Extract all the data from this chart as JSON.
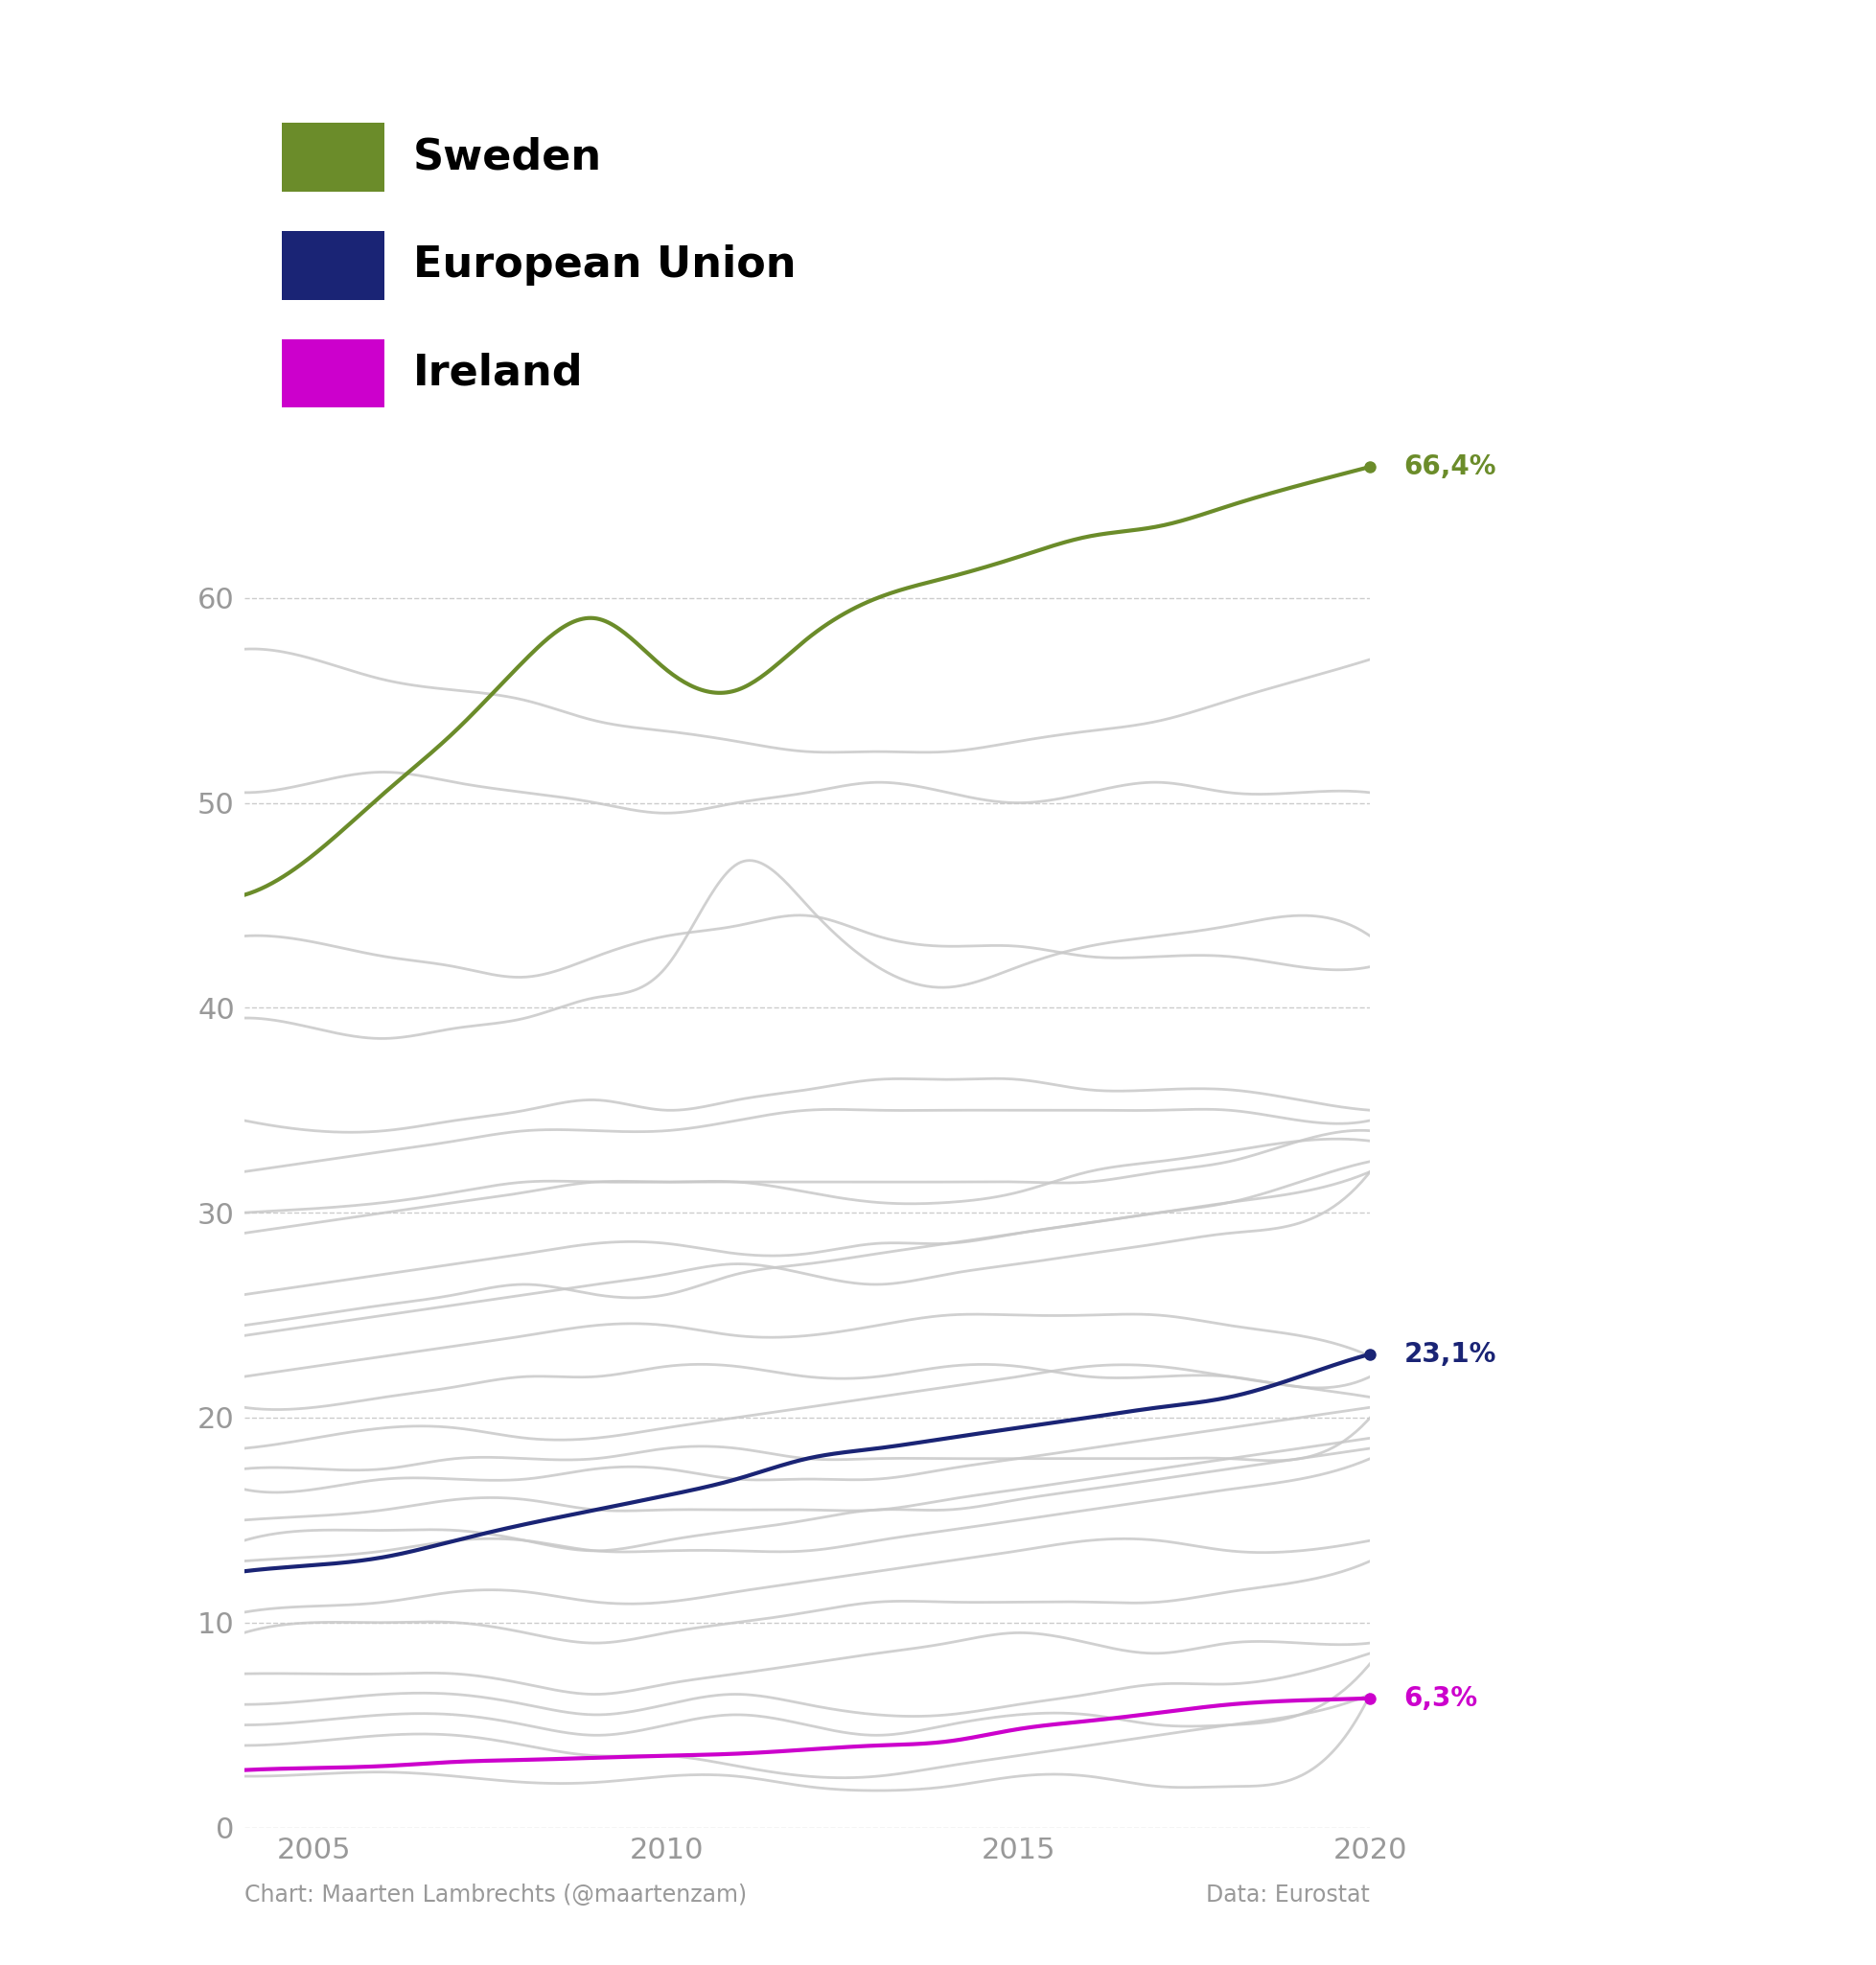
{
  "years": [
    2004,
    2005,
    2006,
    2007,
    2008,
    2009,
    2010,
    2011,
    2012,
    2013,
    2014,
    2015,
    2016,
    2017,
    2018,
    2019,
    2020
  ],
  "sweden": [
    45.5,
    47.5,
    50.5,
    53.5,
    57.0,
    59.0,
    56.5,
    55.5,
    58.0,
    60.0,
    61.0,
    62.0,
    63.0,
    63.5,
    64.5,
    65.5,
    66.4
  ],
  "eu": [
    12.5,
    12.8,
    13.2,
    14.0,
    14.8,
    15.5,
    16.2,
    17.0,
    18.0,
    18.5,
    19.0,
    19.5,
    20.0,
    20.5,
    21.0,
    22.0,
    23.1
  ],
  "ireland": [
    2.8,
    2.9,
    3.0,
    3.2,
    3.3,
    3.4,
    3.5,
    3.6,
    3.8,
    4.0,
    4.2,
    4.8,
    5.2,
    5.6,
    6.0,
    6.2,
    6.3
  ],
  "gray_lines": [
    [
      43.5,
      43.2,
      42.5,
      42.0,
      41.5,
      42.5,
      43.5,
      44.0,
      44.5,
      43.5,
      43.0,
      43.0,
      42.5,
      42.5,
      42.5,
      42.0,
      42.0
    ],
    [
      39.5,
      39.0,
      38.5,
      39.0,
      39.5,
      40.5,
      42.0,
      47.0,
      45.0,
      42.0,
      41.0,
      42.0,
      43.0,
      43.5,
      44.0,
      44.5,
      43.5
    ],
    [
      34.5,
      34.0,
      34.0,
      34.5,
      35.0,
      35.5,
      35.0,
      35.5,
      36.0,
      36.5,
      36.5,
      36.5,
      36.0,
      36.0,
      36.0,
      35.5,
      35.0
    ],
    [
      32.0,
      32.5,
      33.0,
      33.5,
      34.0,
      34.0,
      34.0,
      34.5,
      35.0,
      35.0,
      35.0,
      35.0,
      35.0,
      35.0,
      35.0,
      34.5,
      34.5
    ],
    [
      30.0,
      30.2,
      30.5,
      31.0,
      31.5,
      31.5,
      31.5,
      31.5,
      31.5,
      31.5,
      31.5,
      31.5,
      31.5,
      32.0,
      32.5,
      33.5,
      34.0
    ],
    [
      29.0,
      29.5,
      30.0,
      30.5,
      31.0,
      31.5,
      31.5,
      31.5,
      31.0,
      30.5,
      30.5,
      31.0,
      32.0,
      32.5,
      33.0,
      33.5,
      33.5
    ],
    [
      26.0,
      26.5,
      27.0,
      27.5,
      28.0,
      28.5,
      28.5,
      28.0,
      28.0,
      28.5,
      28.5,
      29.0,
      29.5,
      30.0,
      30.5,
      31.5,
      32.5
    ],
    [
      24.5,
      25.0,
      25.5,
      26.0,
      26.5,
      26.0,
      26.0,
      27.0,
      27.5,
      28.0,
      28.5,
      29.0,
      29.5,
      30.0,
      30.5,
      31.0,
      32.0
    ],
    [
      24.0,
      24.5,
      25.0,
      25.5,
      26.0,
      26.5,
      27.0,
      27.5,
      27.0,
      26.5,
      27.0,
      27.5,
      28.0,
      28.5,
      29.0,
      29.5,
      32.0
    ],
    [
      22.0,
      22.5,
      23.0,
      23.5,
      24.0,
      24.5,
      24.5,
      24.0,
      24.0,
      24.5,
      25.0,
      25.0,
      25.0,
      25.0,
      24.5,
      24.0,
      23.0
    ],
    [
      20.5,
      20.5,
      21.0,
      21.5,
      22.0,
      22.0,
      22.5,
      22.5,
      22.0,
      22.0,
      22.5,
      22.5,
      22.0,
      22.0,
      22.0,
      21.5,
      22.0
    ],
    [
      18.5,
      19.0,
      19.5,
      19.5,
      19.0,
      19.0,
      19.5,
      20.0,
      20.5,
      21.0,
      21.5,
      22.0,
      22.5,
      22.5,
      22.0,
      21.5,
      21.0
    ],
    [
      17.5,
      17.5,
      17.5,
      18.0,
      18.0,
      18.0,
      18.5,
      18.5,
      18.0,
      18.0,
      18.0,
      18.0,
      18.0,
      18.0,
      18.0,
      18.0,
      20.0
    ],
    [
      16.5,
      16.5,
      17.0,
      17.0,
      17.0,
      17.5,
      17.5,
      17.0,
      17.0,
      17.0,
      17.5,
      18.0,
      18.5,
      19.0,
      19.5,
      20.0,
      20.5
    ],
    [
      15.0,
      15.2,
      15.5,
      16.0,
      16.0,
      15.5,
      15.5,
      15.5,
      15.5,
      15.5,
      16.0,
      16.5,
      17.0,
      17.5,
      18.0,
      18.5,
      19.0
    ],
    [
      14.0,
      14.5,
      14.5,
      14.5,
      14.0,
      13.5,
      14.0,
      14.5,
      15.0,
      15.5,
      15.5,
      16.0,
      16.5,
      17.0,
      17.5,
      18.0,
      18.5
    ],
    [
      13.0,
      13.2,
      13.5,
      14.0,
      14.0,
      13.5,
      13.5,
      13.5,
      13.5,
      14.0,
      14.5,
      15.0,
      15.5,
      16.0,
      16.5,
      17.0,
      18.0
    ],
    [
      10.5,
      10.8,
      11.0,
      11.5,
      11.5,
      11.0,
      11.0,
      11.5,
      12.0,
      12.5,
      13.0,
      13.5,
      14.0,
      14.0,
      13.5,
      13.5,
      14.0
    ],
    [
      9.5,
      10.0,
      10.0,
      10.0,
      9.5,
      9.0,
      9.5,
      10.0,
      10.5,
      11.0,
      11.0,
      11.0,
      11.0,
      11.0,
      11.5,
      12.0,
      13.0
    ],
    [
      7.5,
      7.5,
      7.5,
      7.5,
      7.0,
      6.5,
      7.0,
      7.5,
      8.0,
      8.5,
      9.0,
      9.5,
      9.0,
      8.5,
      9.0,
      9.0,
      9.0
    ],
    [
      6.0,
      6.2,
      6.5,
      6.5,
      6.0,
      5.5,
      6.0,
      6.5,
      6.0,
      5.5,
      5.5,
      6.0,
      6.5,
      7.0,
      7.0,
      7.5,
      8.5
    ],
    [
      5.0,
      5.2,
      5.5,
      5.5,
      5.0,
      4.5,
      5.0,
      5.5,
      5.0,
      4.5,
      5.0,
      5.5,
      5.5,
      5.0,
      5.0,
      5.5,
      8.0
    ],
    [
      4.0,
      4.2,
      4.5,
      4.5,
      4.0,
      3.5,
      3.5,
      3.0,
      2.5,
      2.5,
      3.0,
      3.5,
      4.0,
      4.5,
      5.0,
      5.5,
      6.5
    ],
    [
      2.5,
      2.6,
      2.7,
      2.5,
      2.2,
      2.2,
      2.5,
      2.5,
      2.0,
      1.8,
      2.0,
      2.5,
      2.5,
      2.0,
      2.0,
      2.5,
      6.5
    ],
    [
      57.5,
      57.0,
      56.0,
      55.5,
      55.0,
      54.0,
      53.5,
      53.0,
      52.5,
      52.5,
      52.5,
      53.0,
      53.5,
      54.0,
      55.0,
      56.0,
      57.0
    ],
    [
      50.5,
      51.0,
      51.5,
      51.0,
      50.5,
      50.0,
      49.5,
      50.0,
      50.5,
      51.0,
      50.5,
      50.0,
      50.5,
      51.0,
      50.5,
      50.5,
      50.5
    ]
  ],
  "sweden_color": "#6b8c2a",
  "eu_color": "#1a2475",
  "ireland_color": "#cc00cc",
  "gray_color": "#c8c8c8",
  "bg_color": "#ffffff",
  "ylim": [
    0,
    70
  ],
  "yticks": [
    0,
    10,
    20,
    30,
    40,
    50,
    60
  ],
  "xticks": [
    2005,
    2010,
    2015,
    2020
  ],
  "xlim": [
    2004,
    2020
  ],
  "legend_items": [
    "Sweden",
    "European Union",
    "Ireland"
  ],
  "legend_colors": [
    "#6b8c2a",
    "#1a2475",
    "#cc00cc"
  ],
  "end_labels": [
    {
      "text": "66,4%",
      "color": "#6b8c2a",
      "value": 66.4
    },
    {
      "text": "23,1%",
      "color": "#1a2475",
      "value": 23.1
    },
    {
      "text": "6,3%",
      "color": "#cc00cc",
      "value": 6.3
    }
  ],
  "footer_left": "Chart: Maarten Lambrechts (@maartenzam)",
  "footer_right": "Data: Eurostat",
  "gray_lw": 2.0,
  "highlight_lw": 3.0,
  "dot_size": 8,
  "label_fontsize": 20,
  "tick_fontsize": 22,
  "legend_fontsize": 32,
  "footer_fontsize": 17
}
